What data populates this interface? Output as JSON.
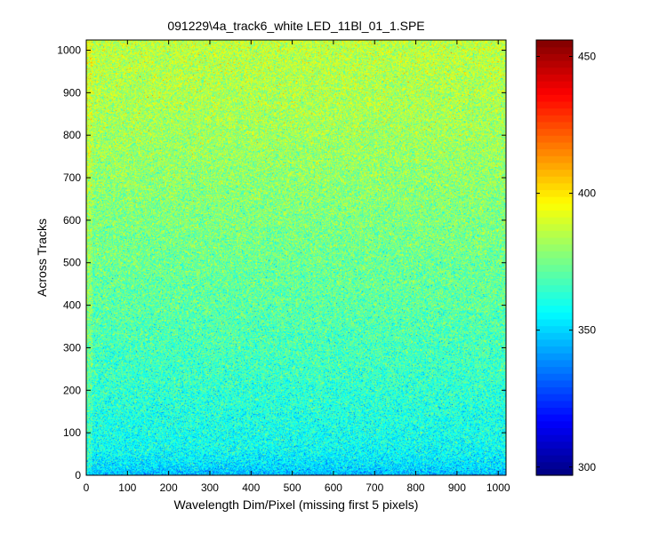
{
  "chart_data": {
    "type": "heatmap",
    "title": "091229\\4a_track6_white LED_11Bl_01_1.SPE",
    "xlabel": "Wavelength Dim/Pixel (missing first 5 pixels)",
    "ylabel": "Across Tracks",
    "xlim": [
      0,
      1019
    ],
    "ylim": [
      0,
      1024
    ],
    "xticks": [
      0,
      100,
      200,
      300,
      400,
      500,
      600,
      700,
      800,
      900,
      1000
    ],
    "yticks": [
      0,
      100,
      200,
      300,
      400,
      500,
      600,
      700,
      800,
      900,
      1000
    ],
    "colormap": "jet",
    "clim": [
      297,
      456
    ],
    "colorbar_ticks": [
      300,
      350,
      400,
      450
    ],
    "grid": false,
    "colorbar_position": "right",
    "row_mean_profile": {
      "rows": [
        0,
        20,
        60,
        150,
        250,
        400,
        550,
        700,
        850,
        1000,
        1024
      ],
      "mean_values": [
        345,
        352,
        358,
        362,
        366,
        371,
        375,
        379,
        383,
        386,
        387
      ]
    },
    "noise_std": 9
  }
}
